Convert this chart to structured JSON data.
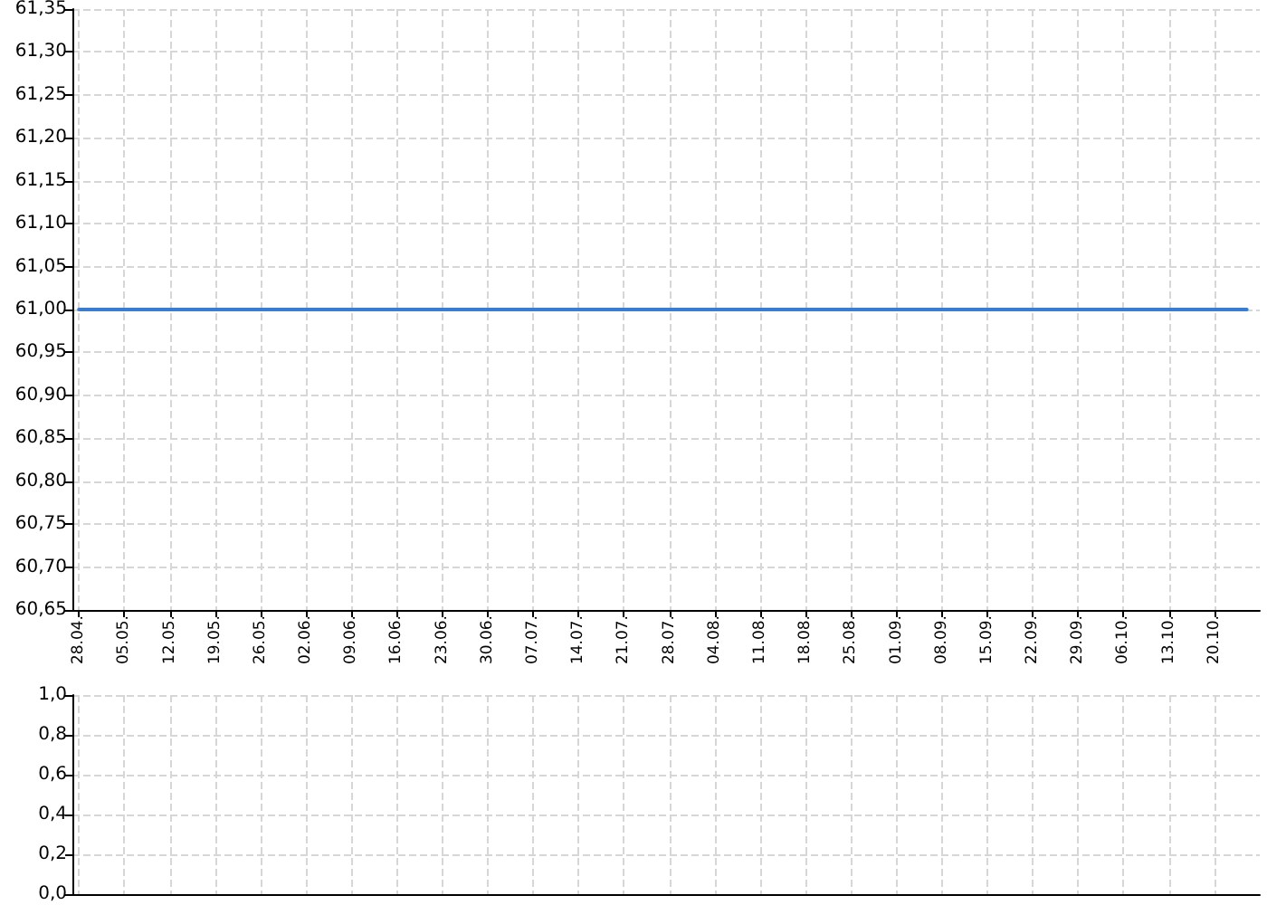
{
  "chart_data": [
    {
      "type": "line",
      "x": [
        "--04-28",
        "--10-25"
      ],
      "values": [
        61,
        61
      ],
      "color": "#3a7ccf",
      "xlim": [
        "--04-27",
        "--10-27"
      ],
      "xticks": [
        {
          "value": "--04-28",
          "label": "28.04."
        },
        {
          "value": "--05-05",
          "label": "05.05."
        },
        {
          "value": "--05-12",
          "label": "12.05."
        },
        {
          "value": "--05-19",
          "label": "19.05."
        },
        {
          "value": "--05-26",
          "label": "26.05."
        },
        {
          "value": "--06-02",
          "label": "02.06."
        },
        {
          "value": "--06-09",
          "label": "09.06."
        },
        {
          "value": "--06-16",
          "label": "16.06."
        },
        {
          "value": "--06-23",
          "label": "23.06."
        },
        {
          "value": "--06-30",
          "label": "30.06."
        },
        {
          "value": "--07-07",
          "label": "07.07."
        },
        {
          "value": "--07-14",
          "label": "14.07."
        },
        {
          "value": "--07-21",
          "label": "21.07."
        },
        {
          "value": "--07-28",
          "label": "28.07."
        },
        {
          "value": "--08-04",
          "label": "04.08."
        },
        {
          "value": "--08-11",
          "label": "11.08."
        },
        {
          "value": "--08-18",
          "label": "18.08."
        },
        {
          "value": "--08-25",
          "label": "25.08."
        },
        {
          "value": "--09-01",
          "label": "01.09."
        },
        {
          "value": "--09-08",
          "label": "08.09."
        },
        {
          "value": "--09-15",
          "label": "15.09."
        },
        {
          "value": "--09-22",
          "label": "22.09."
        },
        {
          "value": "--09-29",
          "label": "29.09."
        },
        {
          "value": "--10-06",
          "label": "06.10."
        },
        {
          "value": "--10-13",
          "label": "13.10."
        },
        {
          "value": "--10-20",
          "label": "20.10."
        }
      ],
      "ylim": [
        60.65,
        61.35
      ],
      "yticks": [
        {
          "value": 60.65,
          "label": "60,65"
        },
        {
          "value": 60.7,
          "label": "60,70"
        },
        {
          "value": 60.75,
          "label": "60,75"
        },
        {
          "value": 60.8,
          "label": "60,80"
        },
        {
          "value": 60.85,
          "label": "60,85"
        },
        {
          "value": 60.9,
          "label": "60,90"
        },
        {
          "value": 60.95,
          "label": "60,95"
        },
        {
          "value": 61,
          "label": "61,00"
        },
        {
          "value": 61.05,
          "label": "61,05"
        },
        {
          "value": 61.1,
          "label": "61,10"
        },
        {
          "value": 61.15,
          "label": "61,15"
        },
        {
          "value": 61.2,
          "label": "61,20"
        },
        {
          "value": 61.25,
          "label": "61,25"
        },
        {
          "value": 61.3,
          "label": "61,30"
        },
        {
          "value": 61.35,
          "label": "61,35"
        }
      ],
      "grid": true
    },
    {
      "type": "bar",
      "xlim": [
        "--04-27",
        "--10-27"
      ],
      "xticks": [
        {
          "value": "--04-28",
          "label": null
        },
        {
          "value": "--05-05",
          "label": null
        },
        {
          "value": "--05-12",
          "label": null
        },
        {
          "value": "--05-19",
          "label": null
        },
        {
          "value": "--05-26",
          "label": null
        },
        {
          "value": "--06-02",
          "label": null
        },
        {
          "value": "--06-09",
          "label": null
        },
        {
          "value": "--06-16",
          "label": null
        },
        {
          "value": "--06-23",
          "label": null
        },
        {
          "value": "--06-30",
          "label": null
        },
        {
          "value": "--07-07",
          "label": null
        },
        {
          "value": "--07-14",
          "label": null
        },
        {
          "value": "--07-21",
          "label": null
        },
        {
          "value": "--07-28",
          "label": null
        },
        {
          "value": "--08-04",
          "label": null
        },
        {
          "value": "--08-11",
          "label": null
        },
        {
          "value": "--08-18",
          "label": null
        },
        {
          "value": "--08-25",
          "label": null
        },
        {
          "value": "--09-01",
          "label": null
        },
        {
          "value": "--09-08",
          "label": null
        },
        {
          "value": "--09-15",
          "label": null
        },
        {
          "value": "--09-22",
          "label": null
        },
        {
          "value": "--09-29",
          "label": null
        },
        {
          "value": "--10-06",
          "label": null
        },
        {
          "value": "--10-13",
          "label": null
        },
        {
          "value": "--10-20",
          "label": null
        }
      ],
      "ylim": [
        0,
        1
      ],
      "yticks": [
        {
          "value": 0,
          "label": "0,0"
        },
        {
          "value": 0.2,
          "label": "0,2"
        },
        {
          "value": 0.4,
          "label": "0,4"
        },
        {
          "value": 0.6,
          "label": "0,6"
        },
        {
          "value": 0.8,
          "label": "0,8"
        },
        {
          "value": 1,
          "label": "1,0"
        }
      ],
      "grid": true,
      "tick_labels": "y"
    }
  ]
}
